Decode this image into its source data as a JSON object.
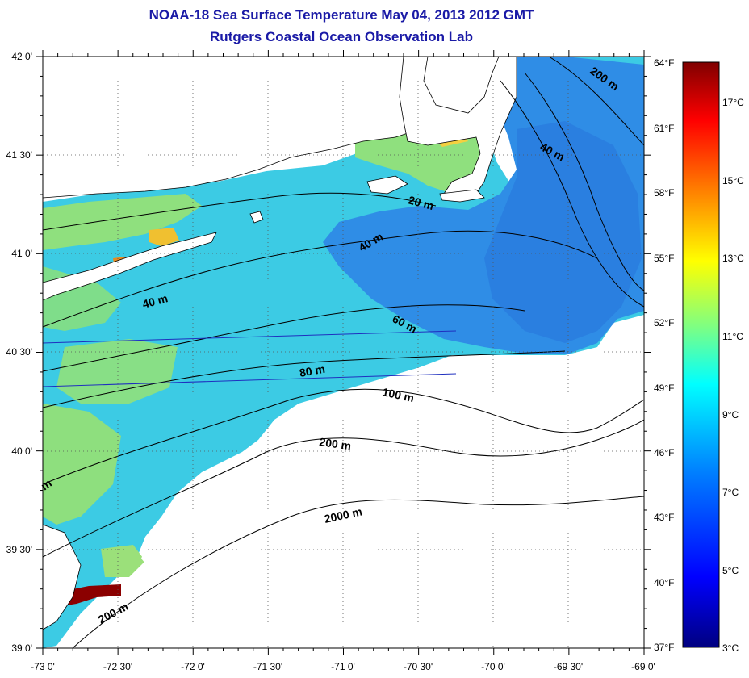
{
  "title": "NOAA-18 Sea Surface Temperature May 04, 2013 2012 GMT",
  "subtitle": "Rutgers Coastal Ocean Observation Lab",
  "axes": {
    "lat_labels": [
      "42 0'",
      "41 30'",
      "41 0'",
      "40 30'",
      "40 0'",
      "39 30'",
      "39 0'"
    ],
    "lon_labels": [
      "-73 0'",
      "-72 30'",
      "-72 0'",
      "-71 30'",
      "-71 0'",
      "-70 30'",
      "-70 0'",
      "-69 30'",
      "-69 0'"
    ],
    "fahrenheit_labels": [
      "64°F",
      "61°F",
      "58°F",
      "55°F",
      "52°F",
      "49°F",
      "46°F",
      "43°F",
      "40°F",
      "37°F"
    ]
  },
  "colorbar": {
    "celsius_labels": [
      "17°C",
      "15°C",
      "13°C",
      "11°C",
      "9°C",
      "7°C",
      "5°C",
      "3°C"
    ],
    "range_c": [
      3,
      18
    ],
    "colors": [
      "#000080",
      "#0000ff",
      "#0080ff",
      "#00ffff",
      "#80ff80",
      "#ffff00",
      "#ff8000",
      "#ff0000",
      "#800000"
    ]
  },
  "contours": {
    "labels": [
      "200 m",
      "40 m",
      "20 m",
      "40 m",
      "40 m",
      "60 m",
      "80 m",
      "100 m",
      "200 m",
      "2000 m",
      "200 m",
      "m"
    ]
  },
  "land_color": "#ffffff",
  "water_colors": {
    "cool": "#2f8ce8",
    "mid": "#37c9e6",
    "warm": "#9ee27a",
    "hot": "#8b0000"
  }
}
